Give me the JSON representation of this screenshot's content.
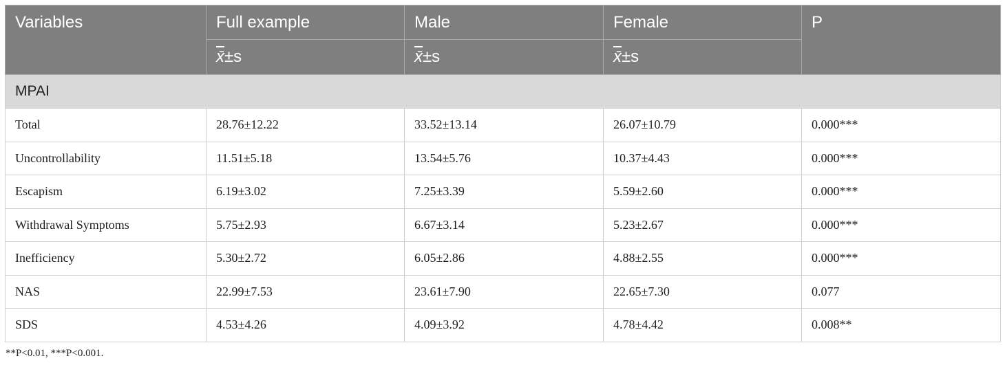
{
  "table": {
    "headers": {
      "variables": "Variables",
      "full_example": "Full example",
      "male": "Male",
      "female": "Female",
      "p": "P"
    },
    "subheader": {
      "mean_symbol": "x̄",
      "pm": "±",
      "s": "s"
    },
    "section_label": "MPAI",
    "rows": [
      {
        "variable": "Total",
        "full": "28.76±12.22",
        "male": "33.52±13.14",
        "female": "26.07±10.79",
        "p": "0.000***"
      },
      {
        "variable": "Uncontrollability",
        "full": "11.51±5.18",
        "male": "13.54±5.76",
        "female": "10.37±4.43",
        "p": "0.000***"
      },
      {
        "variable": "Escapism",
        "full": "6.19±3.02",
        "male": "7.25±3.39",
        "female": "5.59±2.60",
        "p": "0.000***"
      },
      {
        "variable": "Withdrawal Symptoms",
        "full": "5.75±2.93",
        "male": "6.67±3.14",
        "female": "5.23±2.67",
        "p": "0.000***"
      },
      {
        "variable": "Inefficiency",
        "full": "5.30±2.72",
        "male": "6.05±2.86",
        "female": "4.88±2.55",
        "p": "0.000***"
      },
      {
        "variable": "NAS",
        "full": "22.99±7.53",
        "male": "23.61±7.90",
        "female": "22.65±7.30",
        "p": "0.077"
      },
      {
        "variable": "SDS",
        "full": "4.53±4.26",
        "male": "4.09±3.92",
        "female": "4.78±4.42",
        "p": "0.008**"
      }
    ]
  },
  "footnote": "**P<0.01, ***P<0.001."
}
